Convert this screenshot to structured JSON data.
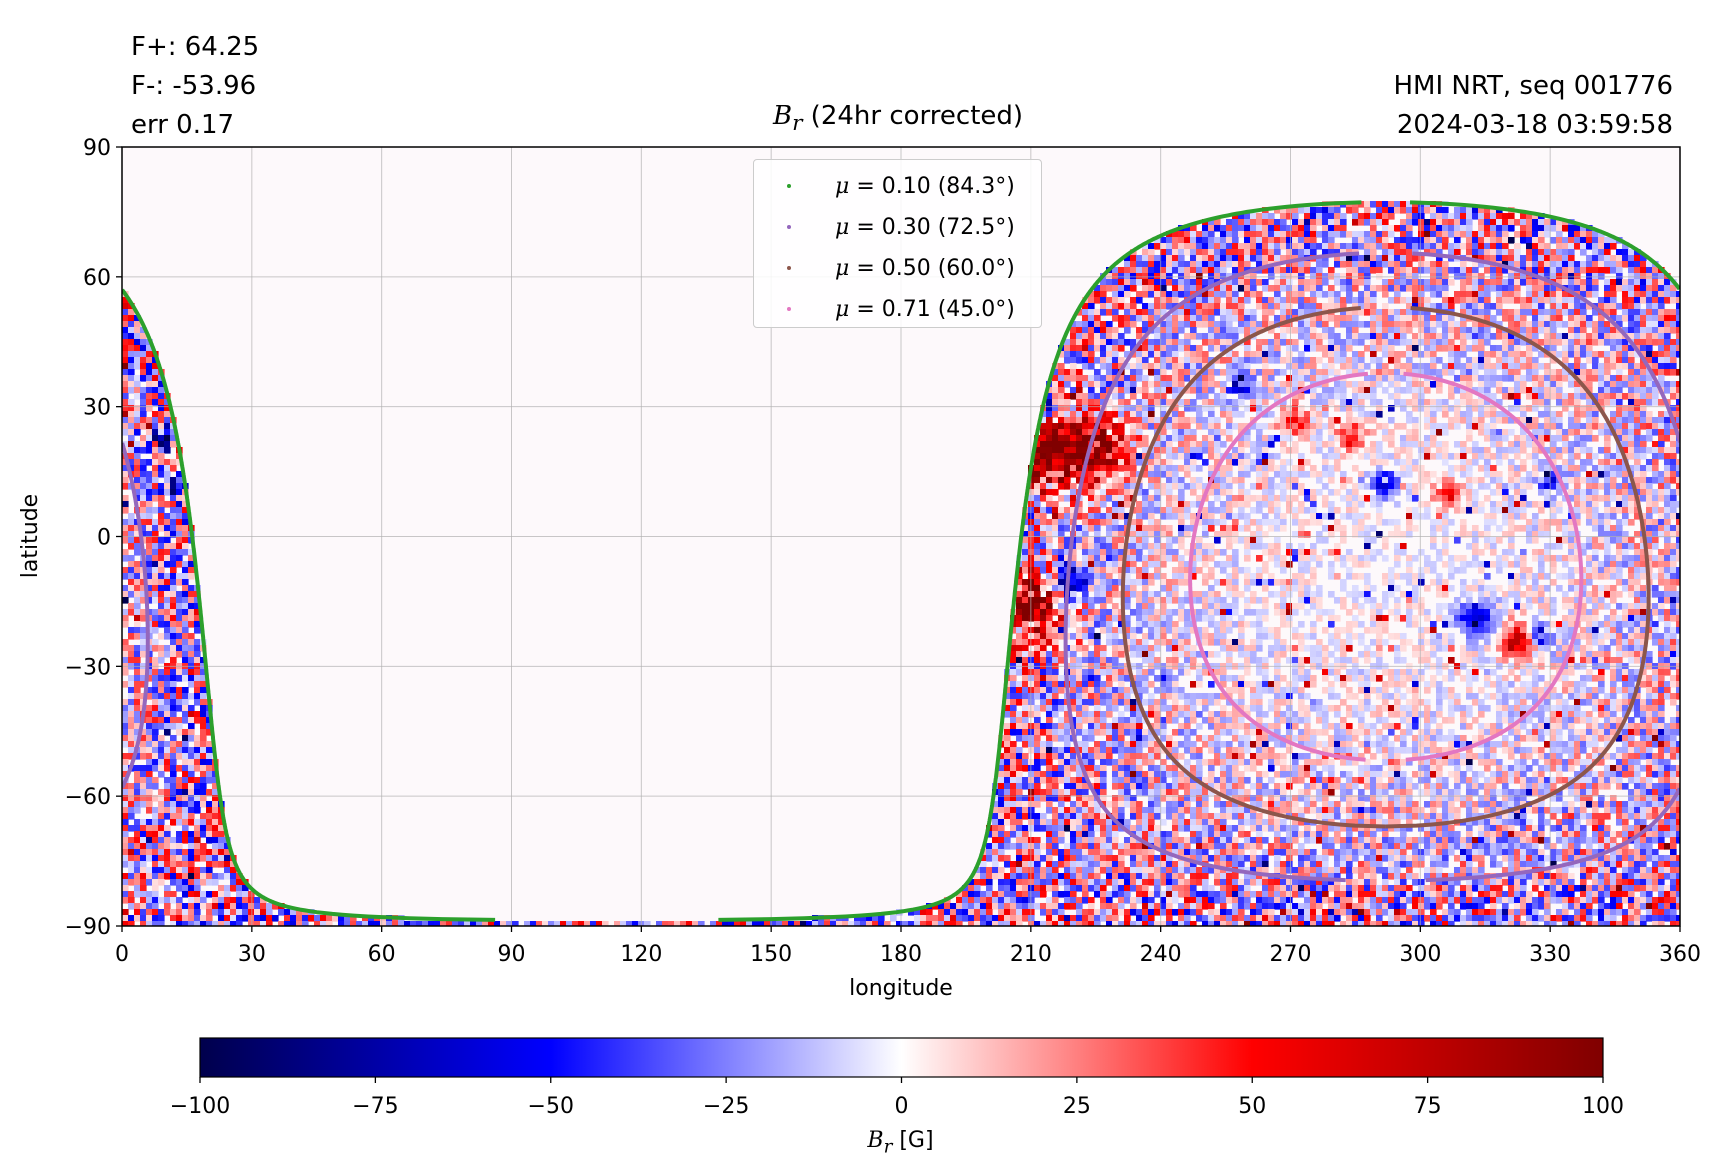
{
  "info_left": [
    "F+: 64.25",
    "F-: -53.96",
    "err 0.17"
  ],
  "info_right": [
    "HMI NRT, seq 001776",
    "2024-03-18 03:59:58"
  ],
  "chart_data": {
    "type": "heatmap",
    "title_symbol": "B",
    "title_sub": "r",
    "title_rest": " (24hr corrected)",
    "xlabel": "longitude",
    "ylabel": "latitude",
    "xlim": [
      0,
      360
    ],
    "ylim": [
      -90,
      90
    ],
    "xticks": [
      "0",
      "30",
      "60",
      "90",
      "120",
      "150",
      "180",
      "210",
      "240",
      "270",
      "300",
      "330",
      "360"
    ],
    "yticks": [
      "−90",
      "−60",
      "−30",
      "0",
      "30",
      "60",
      "90"
    ],
    "grid": true,
    "legend_position": "top-center",
    "series": [
      {
        "name": "μ = 0.10 (84.3°)",
        "label_value": "= 0.10 (84.3°)",
        "mu": 0.1,
        "color": "#2ca02c"
      },
      {
        "name": "μ = 0.30 (72.5°)",
        "label_value": "= 0.30 (72.5°)",
        "mu": 0.3,
        "color": "#9467bd"
      },
      {
        "name": "μ = 0.50 (60.0°)",
        "label_value": "= 0.50 (60.0°)",
        "mu": 0.5,
        "color": "#8c564b"
      },
      {
        "name": "μ = 0.71 (45.0°)",
        "label_value": "= 0.71 (45.0°)",
        "mu": 0.71,
        "color": "#e377c2"
      }
    ],
    "disk_center": {
      "longitude": 292,
      "latitude": -7
    },
    "colorbar": {
      "vmin": -100,
      "vmax": 100,
      "ticks": [
        "−100",
        "−75",
        "−50",
        "−25",
        "0",
        "25",
        "50",
        "75",
        "100"
      ],
      "label_symbol": "B",
      "label_sub": "r",
      "label_unit": " [G]",
      "colormap": "seismic",
      "stops": [
        "#00004c",
        "#0000ff",
        "#ffffff",
        "#ff0000",
        "#800000"
      ]
    },
    "active_regions": [
      {
        "longitude": 213,
        "latitude": 20,
        "strength": 95,
        "size": 10
      },
      {
        "longitude": 226,
        "latitude": 20,
        "strength": 80,
        "size": 7
      },
      {
        "longitude": 209,
        "latitude": -16,
        "strength": 90,
        "size": 8
      },
      {
        "longitude": 219,
        "latitude": -10,
        "strength": -70,
        "size": 4
      },
      {
        "longitude": 213,
        "latitude": 30,
        "strength": -75,
        "size": 4
      },
      {
        "longitude": 9,
        "latitude": 23,
        "strength": -70,
        "size": 3
      },
      {
        "longitude": 13,
        "latitude": 12,
        "strength": -75,
        "size": 3
      },
      {
        "longitude": 323,
        "latitude": -24,
        "strength": 80,
        "size": 4
      },
      {
        "longitude": 327,
        "latitude": -23,
        "strength": -75,
        "size": 3
      },
      {
        "longitude": 313,
        "latitude": -19,
        "strength": -70,
        "size": 4
      },
      {
        "longitude": 306,
        "latitude": 10,
        "strength": 60,
        "size": 3
      },
      {
        "longitude": 292,
        "latitude": 12,
        "strength": -60,
        "size": 3
      },
      {
        "longitude": 271,
        "latitude": 27,
        "strength": 55,
        "size": 3
      },
      {
        "longitude": 284,
        "latitude": 23,
        "strength": 50,
        "size": 3
      },
      {
        "longitude": 258,
        "latitude": 35,
        "strength": -50,
        "size": 3
      },
      {
        "longitude": 330,
        "latitude": 13,
        "strength": -50,
        "size": 3
      }
    ]
  }
}
